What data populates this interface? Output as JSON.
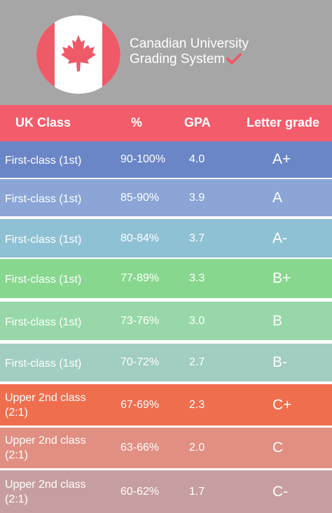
{
  "header": {
    "title_line1": "Canadian University",
    "title_line2": "Grading System",
    "flag_icon": "canada-flag-icon",
    "accent": "#ef5a68"
  },
  "table": {
    "columns": [
      "UK Class",
      "%",
      "GPA",
      "Letter grade"
    ],
    "header_color": "#f25c6b",
    "rows": [
      {
        "uk_class": "First-class (1st)",
        "percent": "90-100%",
        "gpa": "4.0",
        "letter": "A+",
        "color": "#6b86c7"
      },
      {
        "uk_class": "First-class (1st)",
        "percent": "85-90%",
        "gpa": "3.9",
        "letter": "A",
        "color": "#8aa5d6"
      },
      {
        "uk_class": "First-class (1st)",
        "percent": "80-84%",
        "gpa": "3.7",
        "letter": "A-",
        "color": "#8fc1d4"
      },
      {
        "uk_class": "First-class (1st)",
        "percent": "77-89%",
        "gpa": "3.3",
        "letter": "B+",
        "color": "#88d78f"
      },
      {
        "uk_class": "First-class (1st)",
        "percent": "73-76%",
        "gpa": "3.0",
        "letter": "B",
        "color": "#98d8a8"
      },
      {
        "uk_class": "First-class (1st)",
        "percent": "70-72%",
        "gpa": "2.7",
        "letter": "B-",
        "color": "#a1cdc3"
      },
      {
        "uk_class_line1": "Upper 2nd class",
        "uk_class_line2": "(2:1)",
        "percent": "67-69%",
        "gpa": "2.3",
        "letter": "C+",
        "color": "#ef6e4e"
      },
      {
        "uk_class_line1": "Upper 2nd class",
        "uk_class_line2": "(2:1)",
        "percent": "63-66%",
        "gpa": "2.0",
        "letter": "C",
        "color": "#e08f82"
      },
      {
        "uk_class_line1": "Upper 2nd class",
        "uk_class_line2": "(2:1)",
        "percent": "60-62%",
        "gpa": "1.7",
        "letter": "C-",
        "color": "#c79e9f"
      }
    ]
  }
}
